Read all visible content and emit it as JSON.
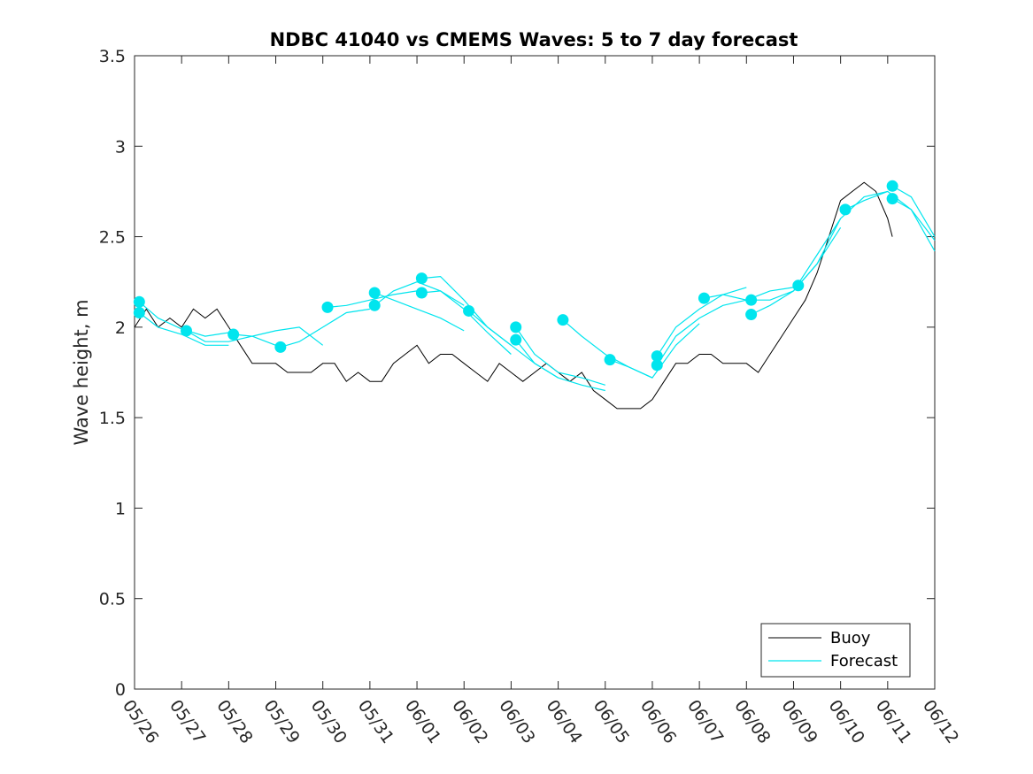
{
  "chart_data": {
    "type": "line",
    "title": "NDBC 41040 vs CMEMS Waves: 5 to 7 day forecast",
    "xlabel": "",
    "ylabel": "Wave height, m",
    "x_ticks": [
      "05/26",
      "05/27",
      "05/28",
      "05/29",
      "05/30",
      "05/31",
      "06/01",
      "06/02",
      "06/03",
      "06/04",
      "06/05",
      "06/06",
      "06/07",
      "06/08",
      "06/09",
      "06/10",
      "06/11",
      "06/12"
    ],
    "xlim": [
      0,
      17
    ],
    "ylim": [
      0,
      3.5
    ],
    "y_ticks": [
      "0",
      "0.5",
      "1",
      "1.5",
      "2",
      "2.5",
      "3",
      "3.5"
    ],
    "y_tick_values": [
      0,
      0.5,
      1,
      1.5,
      2,
      2.5,
      3,
      3.5
    ],
    "grid": false,
    "legend_position": "bottom-right",
    "colors": {
      "buoy": "#000000",
      "forecast": "#00e5ee"
    },
    "series": [
      {
        "name": "Buoy",
        "style": "line",
        "x": [
          0.0,
          0.25,
          0.5,
          0.75,
          1.0,
          1.25,
          1.5,
          1.75,
          2.0,
          2.25,
          2.5,
          2.75,
          3.0,
          3.25,
          3.5,
          3.75,
          4.0,
          4.25,
          4.5,
          4.75,
          5.0,
          5.25,
          5.5,
          5.75,
          6.0,
          6.25,
          6.5,
          6.75,
          7.0,
          7.25,
          7.5,
          7.75,
          8.0,
          8.25,
          8.5,
          8.75,
          9.0,
          9.25,
          9.5,
          9.75,
          10.0,
          10.25,
          10.5,
          10.75,
          11.0,
          11.25,
          11.5,
          11.75,
          12.0,
          12.25,
          12.5,
          12.75,
          13.0,
          13.25,
          13.5,
          13.75,
          14.0,
          14.25,
          14.5,
          14.75,
          15.0,
          15.25,
          15.5,
          15.75,
          16.0,
          16.1
        ],
        "y": [
          2.0,
          2.1,
          2.0,
          2.05,
          2.0,
          2.1,
          2.05,
          2.1,
          2.0,
          1.9,
          1.8,
          1.8,
          1.8,
          1.75,
          1.75,
          1.75,
          1.8,
          1.8,
          1.7,
          1.75,
          1.7,
          1.7,
          1.8,
          1.85,
          1.9,
          1.8,
          1.85,
          1.85,
          1.8,
          1.75,
          1.7,
          1.8,
          1.75,
          1.7,
          1.75,
          1.8,
          1.75,
          1.7,
          1.75,
          1.65,
          1.6,
          1.55,
          1.55,
          1.55,
          1.6,
          1.7,
          1.8,
          1.8,
          1.85,
          1.85,
          1.8,
          1.8,
          1.8,
          1.75,
          1.85,
          1.95,
          2.05,
          2.15,
          2.3,
          2.5,
          2.7,
          2.75,
          2.8,
          2.75,
          2.6,
          2.5
        ]
      },
      {
        "name": "Forecast",
        "style": "line",
        "runs": [
          {
            "x": [
              0.1,
              0.5,
              1.0,
              1.5,
              2.0
            ],
            "y": [
              2.14,
              2.05,
              1.99,
              1.95,
              1.97
            ],
            "marker_x": 0.1,
            "marker_y": 2.14
          },
          {
            "x": [
              0.1,
              0.5,
              1.0,
              1.5,
              2.0
            ],
            "y": [
              2.08,
              2.0,
              1.96,
              1.9,
              1.9
            ],
            "marker_x": 0.1,
            "marker_y": 2.08
          },
          {
            "x": [
              1.1,
              1.5,
              2.0,
              2.5,
              3.0
            ],
            "y": [
              1.98,
              1.92,
              1.92,
              1.95,
              1.9
            ],
            "marker_x": 1.1,
            "marker_y": 1.98
          },
          {
            "x": [
              2.1,
              2.5,
              3.0,
              3.5,
              4.0
            ],
            "y": [
              1.96,
              1.95,
              1.98,
              2.0,
              1.9
            ],
            "marker_x": 2.1,
            "marker_y": 1.96
          },
          {
            "x": [
              3.1,
              3.5,
              4.0,
              4.5,
              5.0
            ],
            "y": [
              1.89,
              1.92,
              2.0,
              2.08,
              2.1
            ],
            "marker_x": 3.1,
            "marker_y": 1.89
          },
          {
            "x": [
              4.1,
              4.5,
              5.0,
              5.5,
              6.0
            ],
            "y": [
              2.11,
              2.12,
              2.15,
              2.18,
              2.2
            ],
            "marker_x": 4.1,
            "marker_y": 2.11
          },
          {
            "x": [
              5.1,
              5.5,
              6.0,
              6.5,
              7.0
            ],
            "y": [
              2.12,
              2.2,
              2.25,
              2.2,
              2.12
            ],
            "marker_x": 5.1,
            "marker_y": 2.12
          },
          {
            "x": [
              5.1,
              5.5,
              6.0,
              6.5,
              7.0
            ],
            "y": [
              2.19,
              2.15,
              2.1,
              2.05,
              1.98
            ],
            "marker_x": 5.1,
            "marker_y": 2.19
          },
          {
            "x": [
              6.1,
              6.5,
              7.0,
              7.5,
              8.0
            ],
            "y": [
              2.27,
              2.28,
              2.15,
              2.0,
              1.9
            ],
            "marker_x": 6.1,
            "marker_y": 2.27
          },
          {
            "x": [
              6.1,
              6.5,
              7.0,
              7.5,
              8.0
            ],
            "y": [
              2.19,
              2.2,
              2.1,
              1.97,
              1.85
            ],
            "marker_x": 6.1,
            "marker_y": 2.19
          },
          {
            "x": [
              7.1,
              7.5,
              8.0,
              8.5,
              9.0
            ],
            "y": [
              2.09,
              2.0,
              1.9,
              1.8,
              1.72
            ],
            "marker_x": 7.1,
            "marker_y": 2.09
          },
          {
            "x": [
              8.1,
              8.5,
              9.0,
              9.5,
              10.0
            ],
            "y": [
              2.0,
              1.85,
              1.75,
              1.72,
              1.68
            ],
            "marker_x": 8.1,
            "marker_y": 2.0
          },
          {
            "x": [
              8.1,
              8.5,
              9.0,
              9.5,
              10.0
            ],
            "y": [
              1.93,
              1.8,
              1.72,
              1.68,
              1.65
            ],
            "marker_x": 8.1,
            "marker_y": 1.93
          },
          {
            "x": [
              9.1,
              9.5,
              10.0,
              10.5,
              11.0
            ],
            "y": [
              2.04,
              1.95,
              1.85,
              1.78,
              1.72
            ],
            "marker_x": 9.1,
            "marker_y": 2.04
          },
          {
            "x": [
              10.1,
              10.5,
              11.0,
              11.5,
              12.0
            ],
            "y": [
              1.82,
              1.78,
              1.72,
              1.9,
              2.02
            ],
            "marker_x": 10.1,
            "marker_y": 1.82
          },
          {
            "x": [
              11.1,
              11.5,
              12.0,
              12.5,
              13.0
            ],
            "y": [
              1.84,
              2.0,
              2.1,
              2.18,
              2.22
            ],
            "marker_x": 11.1,
            "marker_y": 1.84
          },
          {
            "x": [
              11.1,
              11.5,
              12.0,
              12.5,
              13.0
            ],
            "y": [
              1.79,
              1.95,
              2.05,
              2.12,
              2.15
            ],
            "marker_x": 11.1,
            "marker_y": 1.79
          },
          {
            "x": [
              12.1,
              12.5,
              13.0,
              13.5,
              14.0
            ],
            "y": [
              2.16,
              2.18,
              2.15,
              2.2,
              2.22
            ],
            "marker_x": 12.1,
            "marker_y": 2.16
          },
          {
            "x": [
              13.1,
              13.5,
              14.0,
              14.5,
              15.0
            ],
            "y": [
              2.15,
              2.15,
              2.2,
              2.35,
              2.55
            ],
            "marker_x": 13.1,
            "marker_y": 2.15
          },
          {
            "x": [
              13.1,
              13.5,
              14.0,
              14.5,
              15.0
            ],
            "y": [
              2.07,
              2.12,
              2.2,
              2.4,
              2.6
            ],
            "marker_x": 13.1,
            "marker_y": 2.07
          },
          {
            "x": [
              14.1,
              14.5,
              15.0,
              15.5,
              16.0
            ],
            "y": [
              2.23,
              2.35,
              2.6,
              2.72,
              2.75
            ],
            "marker_x": 14.1,
            "marker_y": 2.23
          },
          {
            "x": [
              15.1,
              15.5,
              16.0,
              16.5,
              17.0
            ],
            "y": [
              2.65,
              2.7,
              2.75,
              2.65,
              2.48
            ],
            "marker_x": 15.1,
            "marker_y": 2.65
          },
          {
            "x": [
              16.1,
              16.5,
              17.0
            ],
            "y": [
              2.78,
              2.72,
              2.5
            ],
            "marker_x": 16.1,
            "marker_y": 2.78
          },
          {
            "x": [
              16.1,
              16.5,
              17.0
            ],
            "y": [
              2.71,
              2.65,
              2.42
            ],
            "marker_x": 16.1,
            "marker_y": 2.71
          }
        ]
      }
    ],
    "legend": [
      "Buoy",
      "Forecast"
    ]
  }
}
